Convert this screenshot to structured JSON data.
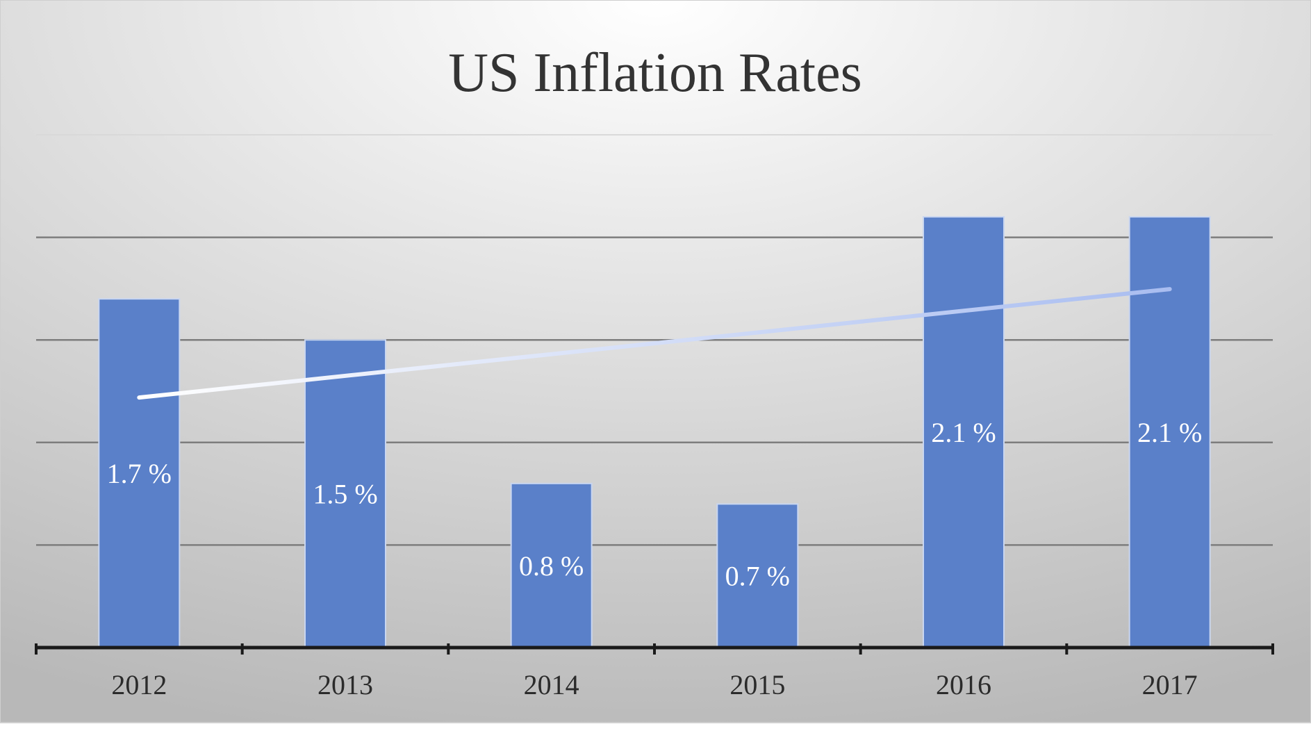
{
  "chart_data": {
    "type": "bar",
    "title": "US Inflation Rates",
    "xlabel": "",
    "ylabel": "",
    "categories": [
      "2012",
      "2013",
      "2014",
      "2015",
      "2016",
      "2017"
    ],
    "values": [
      1.7,
      1.5,
      0.8,
      0.7,
      2.1,
      2.1
    ],
    "data_labels": [
      "1.7 %",
      "1.5 %",
      "0.8 %",
      "0.7 %",
      "2.1 %",
      "2.1 %"
    ],
    "ylim": [
      0,
      2.5
    ],
    "y_gridlines": [
      0.5,
      1.0,
      1.5,
      2.0,
      2.5
    ],
    "y_tick_labels_shown": false,
    "grid": true,
    "legend": "none",
    "trendline": {
      "type": "linear",
      "shown": true
    },
    "colors": {
      "bar": "#5a80c9",
      "bar_border": "#c9d6f0",
      "trendline_start": "#ffffff",
      "trendline_end": "#a9bdf0",
      "gridline": "#7d7d7d",
      "axis": "#1a1a1a",
      "background_light": "#ffffff",
      "background_dark": "#b8b8b8"
    }
  }
}
